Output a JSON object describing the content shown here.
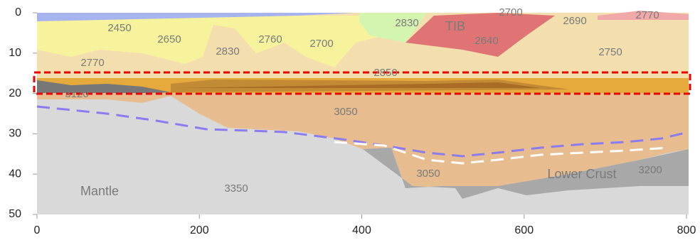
{
  "chart_data": {
    "type": "section",
    "xlim": [
      0,
      800
    ],
    "ylim": [
      0,
      50
    ],
    "xticks": [
      0,
      200,
      400,
      600,
      800
    ],
    "yticks": [
      0,
      10,
      20,
      30,
      40,
      50
    ],
    "annotations": [
      "2450",
      "2650",
      "2760",
      "2700",
      "2830",
      "2770",
      "2830",
      "TIB",
      "2700",
      "2640",
      "2690",
      "2770",
      "2750",
      "2850",
      "3120",
      "3050",
      "3050",
      "Lower Crust",
      "3200",
      "Mantle",
      "3350"
    ]
  }
}
